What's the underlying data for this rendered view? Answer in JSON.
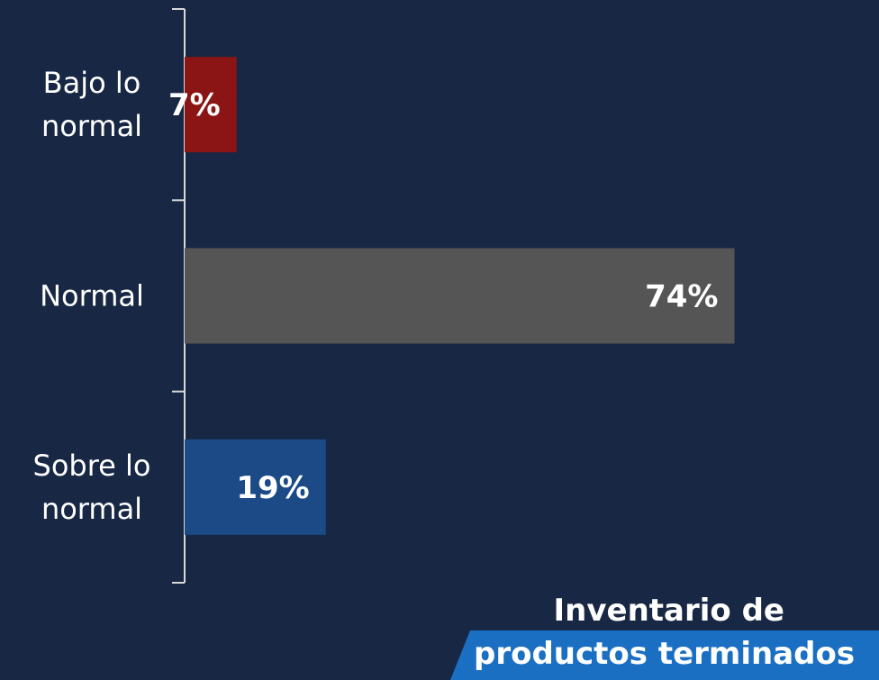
{
  "chart_data": {
    "type": "bar",
    "orientation": "horizontal",
    "categories": [
      [
        "Bajo lo",
        "normal"
      ],
      [
        "Normal"
      ],
      [
        "Sobre lo",
        "normal"
      ]
    ],
    "values": [
      7,
      74,
      19
    ],
    "value_labels": [
      "7%",
      "74%",
      "19%"
    ],
    "bar_colors": [
      "#8b1414",
      "#555555",
      "#1c4a86"
    ],
    "title": [
      "Inventario de",
      "productos terminados"
    ],
    "xlim": [
      0,
      100
    ],
    "grid": false,
    "legend": "none"
  }
}
